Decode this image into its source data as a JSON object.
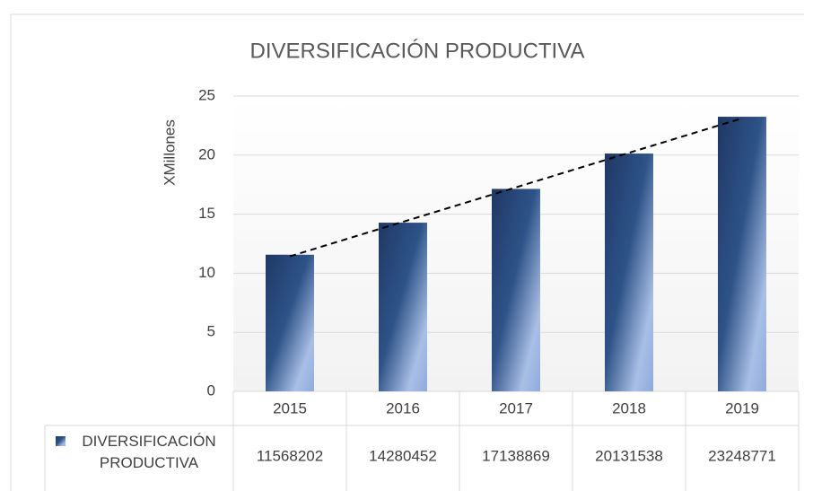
{
  "chart_data": {
    "type": "bar",
    "title": "DIVERSIFICACIÓN PRODUCTIVA",
    "y_label": "XMillones",
    "categories": [
      "2015",
      "2016",
      "2017",
      "2018",
      "2019"
    ],
    "series": [
      {
        "name": "DIVERSIFICACIÓN PRODUCTIVA",
        "color": "#1f3864",
        "values": [
          11.568202,
          14.280452,
          17.138869,
          20.131538,
          23.248771
        ],
        "value_labels": [
          "11568202",
          "14280452",
          "17138869",
          "20131538",
          "23248771"
        ]
      }
    ],
    "ylim": [
      0,
      25
    ],
    "yticks": [
      0,
      5,
      10,
      15,
      20,
      25
    ],
    "grid": true,
    "trendline": "linear",
    "data_table": true
  }
}
